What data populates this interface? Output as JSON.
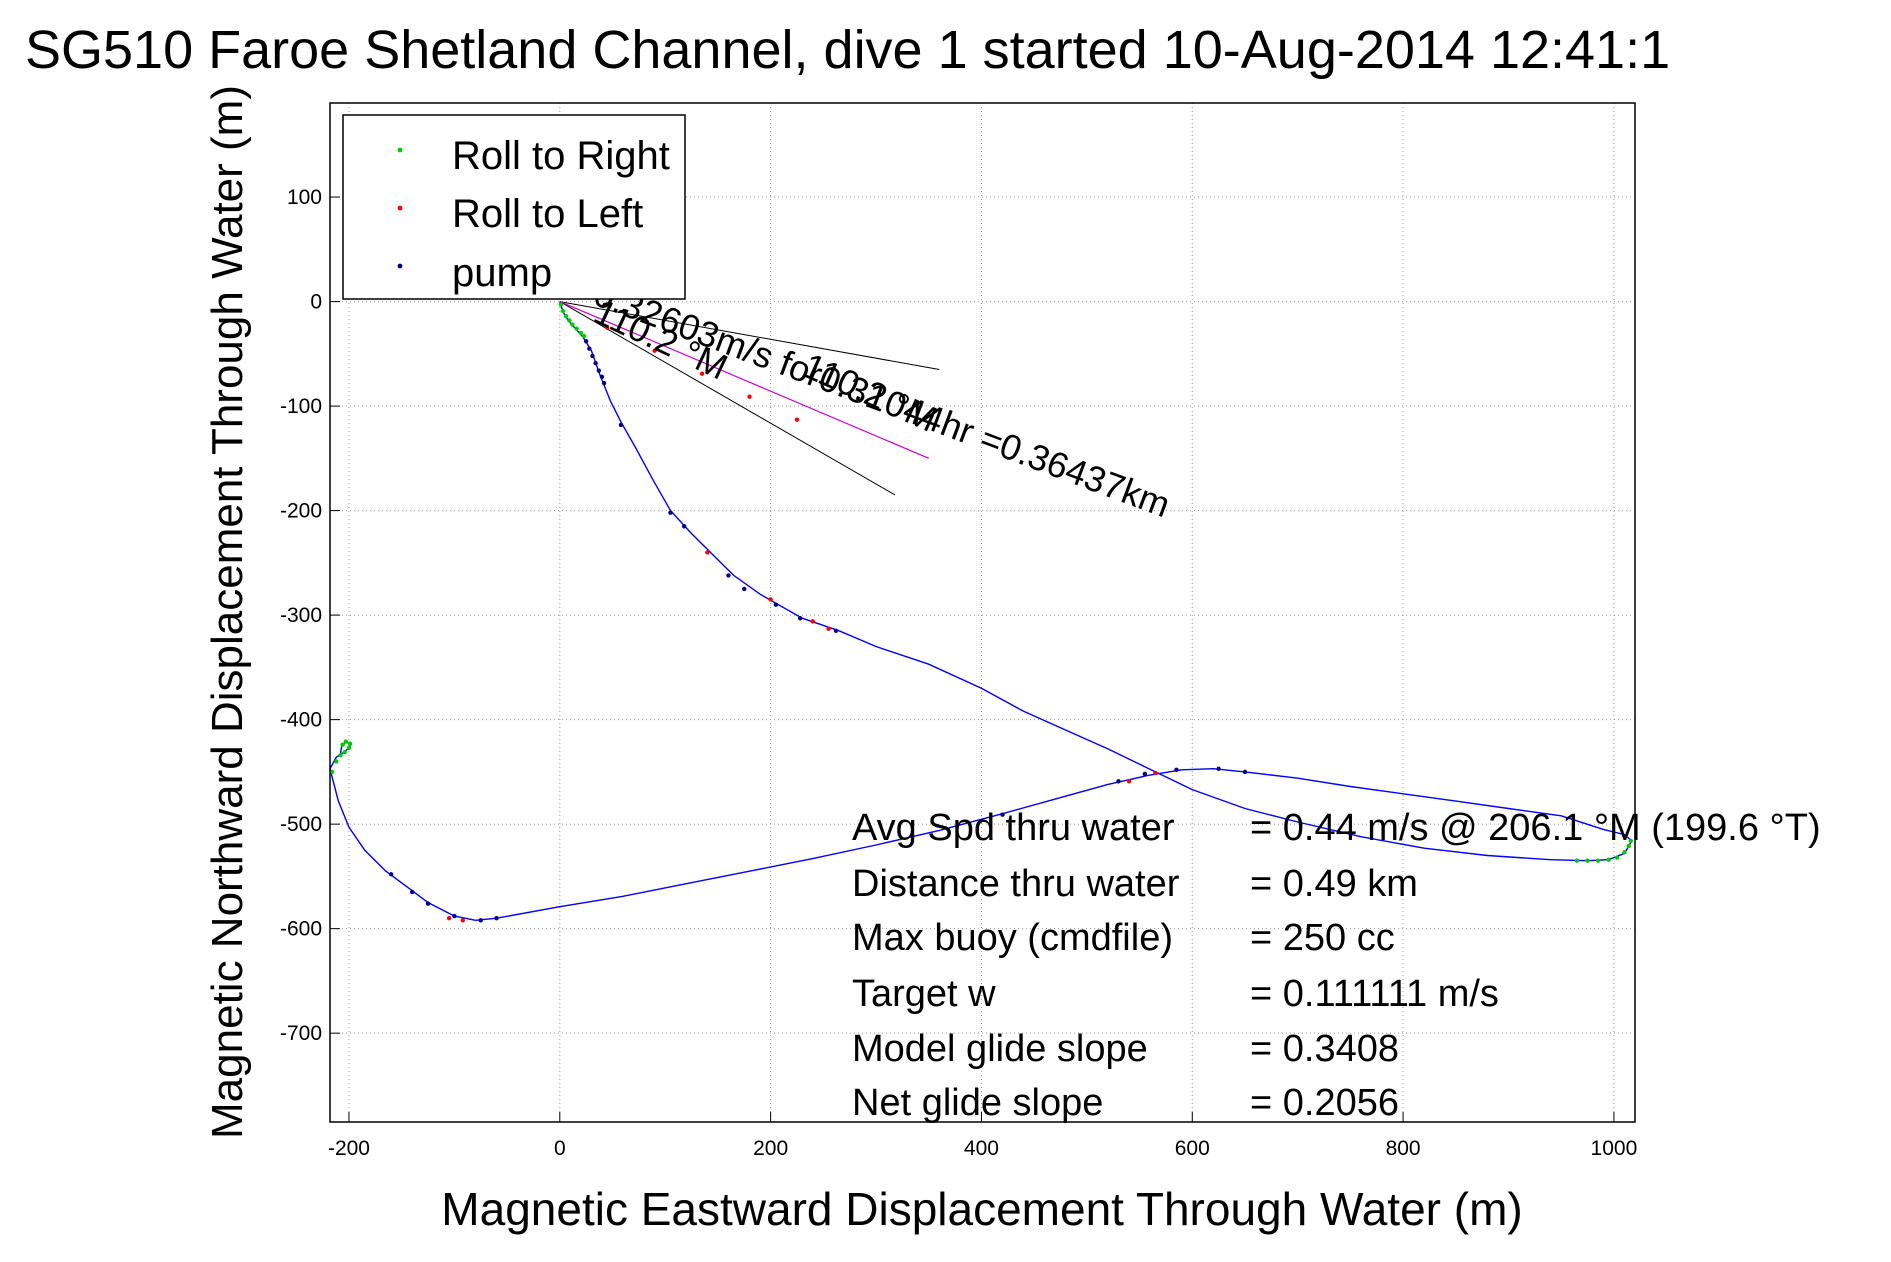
{
  "chart_data": {
    "type": "line",
    "title": "SG510 Faroe Shetland Channel, dive 1 started 10-Aug-2014 12:41:1",
    "xlabel": "Magnetic Eastward Displacement Through Water (m)",
    "ylabel": "Magnetic Northward Displacement Through Water (m)",
    "xlim": [
      -218,
      1020
    ],
    "ylim": [
      -785,
      190
    ],
    "xticks": [
      -200,
      0,
      200,
      400,
      600,
      800,
      1000
    ],
    "yticks": [
      100,
      0,
      -100,
      -200,
      -300,
      -400,
      -500,
      -600,
      -700
    ],
    "grid": true,
    "legend": {
      "position": "top-left",
      "entries": [
        {
          "label": "Roll to Right",
          "color": "#00cc00"
        },
        {
          "label": "Roll to Left",
          "color": "#ff0000"
        },
        {
          "label": "pump",
          "color": "#000080"
        }
      ]
    },
    "track_color": "#0000ff",
    "track": [
      {
        "x": 0,
        "y": 0
      },
      {
        "x": 3,
        "y": -10
      },
      {
        "x": 8,
        "y": -18
      },
      {
        "x": 14,
        "y": -25
      },
      {
        "x": 22,
        "y": -34
      },
      {
        "x": 30,
        "y": -47
      },
      {
        "x": 38,
        "y": -70
      },
      {
        "x": 48,
        "y": -95
      },
      {
        "x": 58,
        "y": -115
      },
      {
        "x": 72,
        "y": -140
      },
      {
        "x": 88,
        "y": -170
      },
      {
        "x": 105,
        "y": -200
      },
      {
        "x": 125,
        "y": -222
      },
      {
        "x": 145,
        "y": -242
      },
      {
        "x": 165,
        "y": -262
      },
      {
        "x": 190,
        "y": -280
      },
      {
        "x": 230,
        "y": -303
      },
      {
        "x": 265,
        "y": -315
      },
      {
        "x": 300,
        "y": -330
      },
      {
        "x": 350,
        "y": -347
      },
      {
        "x": 400,
        "y": -370
      },
      {
        "x": 440,
        "y": -392
      },
      {
        "x": 480,
        "y": -410
      },
      {
        "x": 520,
        "y": -428
      },
      {
        "x": 555,
        "y": -445
      },
      {
        "x": 600,
        "y": -467
      },
      {
        "x": 650,
        "y": -485
      },
      {
        "x": 700,
        "y": -498
      },
      {
        "x": 760,
        "y": -512
      },
      {
        "x": 820,
        "y": -523
      },
      {
        "x": 880,
        "y": -530
      },
      {
        "x": 940,
        "y": -534
      },
      {
        "x": 975,
        "y": -535
      },
      {
        "x": 995,
        "y": -534
      },
      {
        "x": 1010,
        "y": -528
      },
      {
        "x": 1017,
        "y": -516
      },
      {
        "x": 1010,
        "y": -510
      },
      {
        "x": 990,
        "y": -505
      },
      {
        "x": 950,
        "y": -492
      },
      {
        "x": 900,
        "y": -485
      },
      {
        "x": 850,
        "y": -478
      },
      {
        "x": 800,
        "y": -471
      },
      {
        "x": 750,
        "y": -464
      },
      {
        "x": 700,
        "y": -456
      },
      {
        "x": 650,
        "y": -450
      },
      {
        "x": 620,
        "y": -447
      },
      {
        "x": 590,
        "y": -448
      },
      {
        "x": 560,
        "y": -453
      },
      {
        "x": 520,
        "y": -462
      },
      {
        "x": 470,
        "y": -476
      },
      {
        "x": 420,
        "y": -490
      },
      {
        "x": 360,
        "y": -506
      },
      {
        "x": 300,
        "y": -520
      },
      {
        "x": 240,
        "y": -533
      },
      {
        "x": 180,
        "y": -545
      },
      {
        "x": 120,
        "y": -557
      },
      {
        "x": 60,
        "y": -569
      },
      {
        "x": 0,
        "y": -579
      },
      {
        "x": -60,
        "y": -590
      },
      {
        "x": -80,
        "y": -592
      },
      {
        "x": -100,
        "y": -588
      },
      {
        "x": -125,
        "y": -575
      },
      {
        "x": -145,
        "y": -560
      },
      {
        "x": -165,
        "y": -545
      },
      {
        "x": -185,
        "y": -525
      },
      {
        "x": -200,
        "y": -503
      },
      {
        "x": -210,
        "y": -478
      },
      {
        "x": -216,
        "y": -455
      },
      {
        "x": -218,
        "y": -447
      },
      {
        "x": -212,
        "y": -436
      },
      {
        "x": -203,
        "y": -430
      },
      {
        "x": -198,
        "y": -424
      },
      {
        "x": -203,
        "y": -421
      },
      {
        "x": -207,
        "y": -426
      },
      {
        "x": -208,
        "y": -432
      }
    ],
    "roll_right_points": [
      {
        "x": 1,
        "y": -3
      },
      {
        "x": 3,
        "y": -9
      },
      {
        "x": 6,
        "y": -14
      },
      {
        "x": 9,
        "y": -18
      },
      {
        "x": 12,
        "y": -22
      },
      {
        "x": 16,
        "y": -26
      },
      {
        "x": 20,
        "y": -30
      },
      {
        "x": 23,
        "y": -33
      },
      {
        "x": 965,
        "y": -535
      },
      {
        "x": 975,
        "y": -535
      },
      {
        "x": 985,
        "y": -535
      },
      {
        "x": 995,
        "y": -534
      },
      {
        "x": 1003,
        "y": -532
      },
      {
        "x": 1010,
        "y": -527
      },
      {
        "x": 1014,
        "y": -521
      },
      {
        "x": 1016,
        "y": -516
      },
      {
        "x": -216,
        "y": -450
      },
      {
        "x": -212,
        "y": -440
      },
      {
        "x": -208,
        "y": -434
      },
      {
        "x": -204,
        "y": -431
      },
      {
        "x": -200,
        "y": -427
      },
      {
        "x": -199,
        "y": -423
      },
      {
        "x": -203,
        "y": -421
      },
      {
        "x": -206,
        "y": -424
      }
    ],
    "roll_left_points": [
      {
        "x": 45,
        "y": -25
      },
      {
        "x": 90,
        "y": -47
      },
      {
        "x": 135,
        "y": -69
      },
      {
        "x": 180,
        "y": -91
      },
      {
        "x": 225,
        "y": -113
      },
      {
        "x": 140,
        "y": -240
      },
      {
        "x": 200,
        "y": -285
      },
      {
        "x": 240,
        "y": -306
      },
      {
        "x": 255,
        "y": -313
      },
      {
        "x": 540,
        "y": -459
      },
      {
        "x": 565,
        "y": -451
      },
      {
        "x": -105,
        "y": -590
      },
      {
        "x": -92,
        "y": -592
      }
    ],
    "pump_points": [
      {
        "x": 25,
        "y": -38
      },
      {
        "x": 28,
        "y": -45
      },
      {
        "x": 31,
        "y": -52
      },
      {
        "x": 34,
        "y": -59
      },
      {
        "x": 37,
        "y": -66
      },
      {
        "x": 40,
        "y": -72
      },
      {
        "x": 42,
        "y": -78
      },
      {
        "x": 58,
        "y": -118
      },
      {
        "x": 105,
        "y": -202
      },
      {
        "x": 118,
        "y": -215
      },
      {
        "x": 160,
        "y": -262
      },
      {
        "x": 175,
        "y": -275
      },
      {
        "x": 205,
        "y": -290
      },
      {
        "x": 228,
        "y": -303
      },
      {
        "x": 262,
        "y": -315
      },
      {
        "x": 420,
        "y": -491
      },
      {
        "x": 530,
        "y": -459
      },
      {
        "x": 555,
        "y": -452
      },
      {
        "x": 585,
        "y": -448
      },
      {
        "x": 625,
        "y": -447
      },
      {
        "x": 650,
        "y": -450
      },
      {
        "x": -60,
        "y": -590
      },
      {
        "x": -75,
        "y": -592
      },
      {
        "x": -100,
        "y": -588
      },
      {
        "x": -125,
        "y": -576
      },
      {
        "x": -140,
        "y": -565
      },
      {
        "x": -160,
        "y": -548
      }
    ],
    "heading_lines": [
      {
        "from": [
          0,
          0
        ],
        "to": [
          360,
          -65
        ]
      },
      {
        "from": [
          0,
          0
        ],
        "to": [
          318,
          -185
        ]
      },
      {
        "from": [
          0,
          0
        ],
        "to": [
          350,
          -150
        ]
      }
    ],
    "rotated_annotations": [
      {
        "text": "0.32603m/s for0.31044hr =0.36437km",
        "x": 30,
        "y": -2,
        "angle": 20.5
      },
      {
        "text": "110.2 °M",
        "x": 30,
        "y": -18,
        "angle": 25
      },
      {
        "text": "110.2 °M",
        "x": 228,
        "y": -70,
        "angle": 24
      }
    ],
    "stats": [
      {
        "label": "Avg Spd thru water",
        "value": "=  0.44 m/s @ 206.1 °M (199.6 °T)"
      },
      {
        "label": "Distance thru water",
        "value": "=  0.49 km"
      },
      {
        "label": "Max buoy (cmdfile)",
        "value": "= 250 cc"
      },
      {
        "label": "Target w",
        "value": "= 0.111111 m/s"
      },
      {
        "label": "Model glide slope",
        "value": "= 0.3408"
      },
      {
        "label": "Net glide slope",
        "value": "= 0.2056"
      }
    ]
  }
}
